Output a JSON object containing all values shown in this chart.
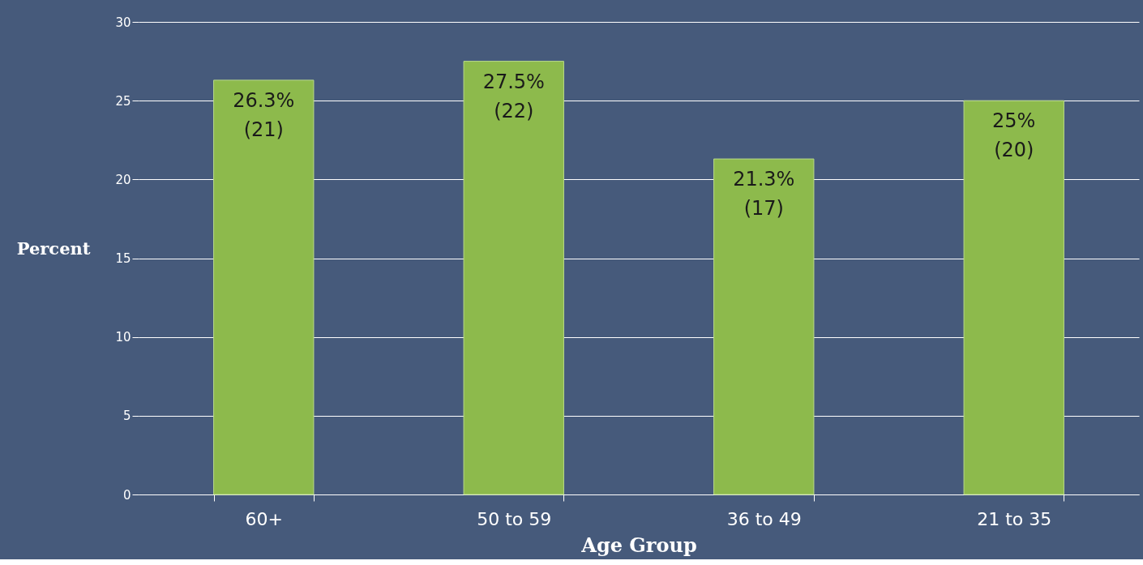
{
  "chart_data": {
    "type": "bar",
    "xlabel": "Age Group",
    "ylabel": "Percent",
    "categories": [
      "60+",
      "50 to 59",
      "36 to 49",
      "21 to 35"
    ],
    "values": [
      26.3,
      27.5,
      21.3,
      25
    ],
    "value_labels": [
      "26.3%\n(21)",
      "27.5%\n(22)",
      "21.3%\n(17)",
      "25%\n(20)"
    ],
    "color": "#8dba4c",
    "ylim": [
      0,
      30
    ],
    "yticks": [
      0,
      5,
      10,
      15,
      20,
      25,
      30
    ],
    "grid": "y"
  }
}
